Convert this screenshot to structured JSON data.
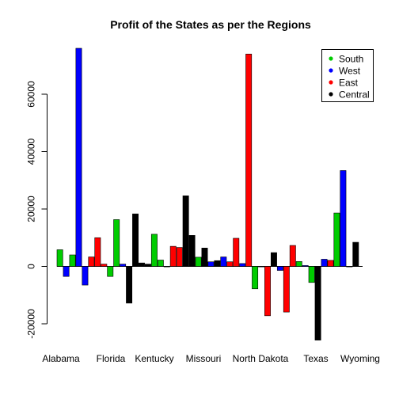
{
  "chart_data": {
    "type": "bar",
    "title": "Profit of the States as per the Regions",
    "xlabel": "",
    "ylabel": "",
    "ylim": [
      -25000,
      76000
    ],
    "y_ticks": [
      -20000,
      0,
      20000,
      40000,
      60000
    ],
    "y_tick_labels": [
      "-20000",
      "0",
      "20000",
      "40000",
      "60000"
    ],
    "x_tick_labels": [
      "Alabama",
      "Florida",
      "Kentucky",
      "Missouri",
      "North Dakota",
      "Texas",
      "Wyoming"
    ],
    "grid": false,
    "legend_position": "top-right",
    "legend": [
      {
        "name": "South",
        "color": "#00cc00"
      },
      {
        "name": "West",
        "color": "#0000ff"
      },
      {
        "name": "East",
        "color": "#ff0000"
      },
      {
        "name": "Central",
        "color": "#000000"
      }
    ],
    "bars": [
      {
        "region": "South",
        "value": 5800
      },
      {
        "region": "West",
        "value": -3500
      },
      {
        "region": "South",
        "value": 4000
      },
      {
        "region": "West",
        "value": 76000
      },
      {
        "region": "West",
        "value": -6500
      },
      {
        "region": "East",
        "value": 3300
      },
      {
        "region": "East",
        "value": 10000
      },
      {
        "region": "East",
        "value": 800
      },
      {
        "region": "South",
        "value": -3500
      },
      {
        "region": "South",
        "value": 16300
      },
      {
        "region": "West",
        "value": 800
      },
      {
        "region": "Central",
        "value": -12800
      },
      {
        "region": "Central",
        "value": 18300
      },
      {
        "region": "Central",
        "value": 1200
      },
      {
        "region": "Central",
        "value": 800
      },
      {
        "region": "South",
        "value": 11200
      },
      {
        "region": "South",
        "value": 2200
      },
      {
        "region": "South",
        "value": 0
      },
      {
        "region": "East",
        "value": 7000
      },
      {
        "region": "East",
        "value": 6600
      },
      {
        "region": "Central",
        "value": 24600
      },
      {
        "region": "Central",
        "value": 10800
      },
      {
        "region": "South",
        "value": 3200
      },
      {
        "region": "Central",
        "value": 6400
      },
      {
        "region": "West",
        "value": 1600
      },
      {
        "region": "Central",
        "value": 2000
      },
      {
        "region": "West",
        "value": 3300
      },
      {
        "region": "East",
        "value": 1600
      },
      {
        "region": "East",
        "value": 9800
      },
      {
        "region": "West",
        "value": 1000
      },
      {
        "region": "East",
        "value": 74000
      },
      {
        "region": "South",
        "value": -7800
      },
      {
        "region": "West",
        "value": 0
      },
      {
        "region": "East",
        "value": -17200
      },
      {
        "region": "Central",
        "value": 4800
      },
      {
        "region": "West",
        "value": -1400
      },
      {
        "region": "East",
        "value": -15900
      },
      {
        "region": "East",
        "value": 7300
      },
      {
        "region": "South",
        "value": 1700
      },
      {
        "region": "West",
        "value": 300
      },
      {
        "region": "South",
        "value": -5600
      },
      {
        "region": "Central",
        "value": -25700
      },
      {
        "region": "West",
        "value": 2500
      },
      {
        "region": "East",
        "value": 2100
      },
      {
        "region": "South",
        "value": 18600
      },
      {
        "region": "West",
        "value": 33400
      },
      {
        "region": "Central",
        "value": 0
      },
      {
        "region": "Central",
        "value": 8400
      }
    ]
  }
}
